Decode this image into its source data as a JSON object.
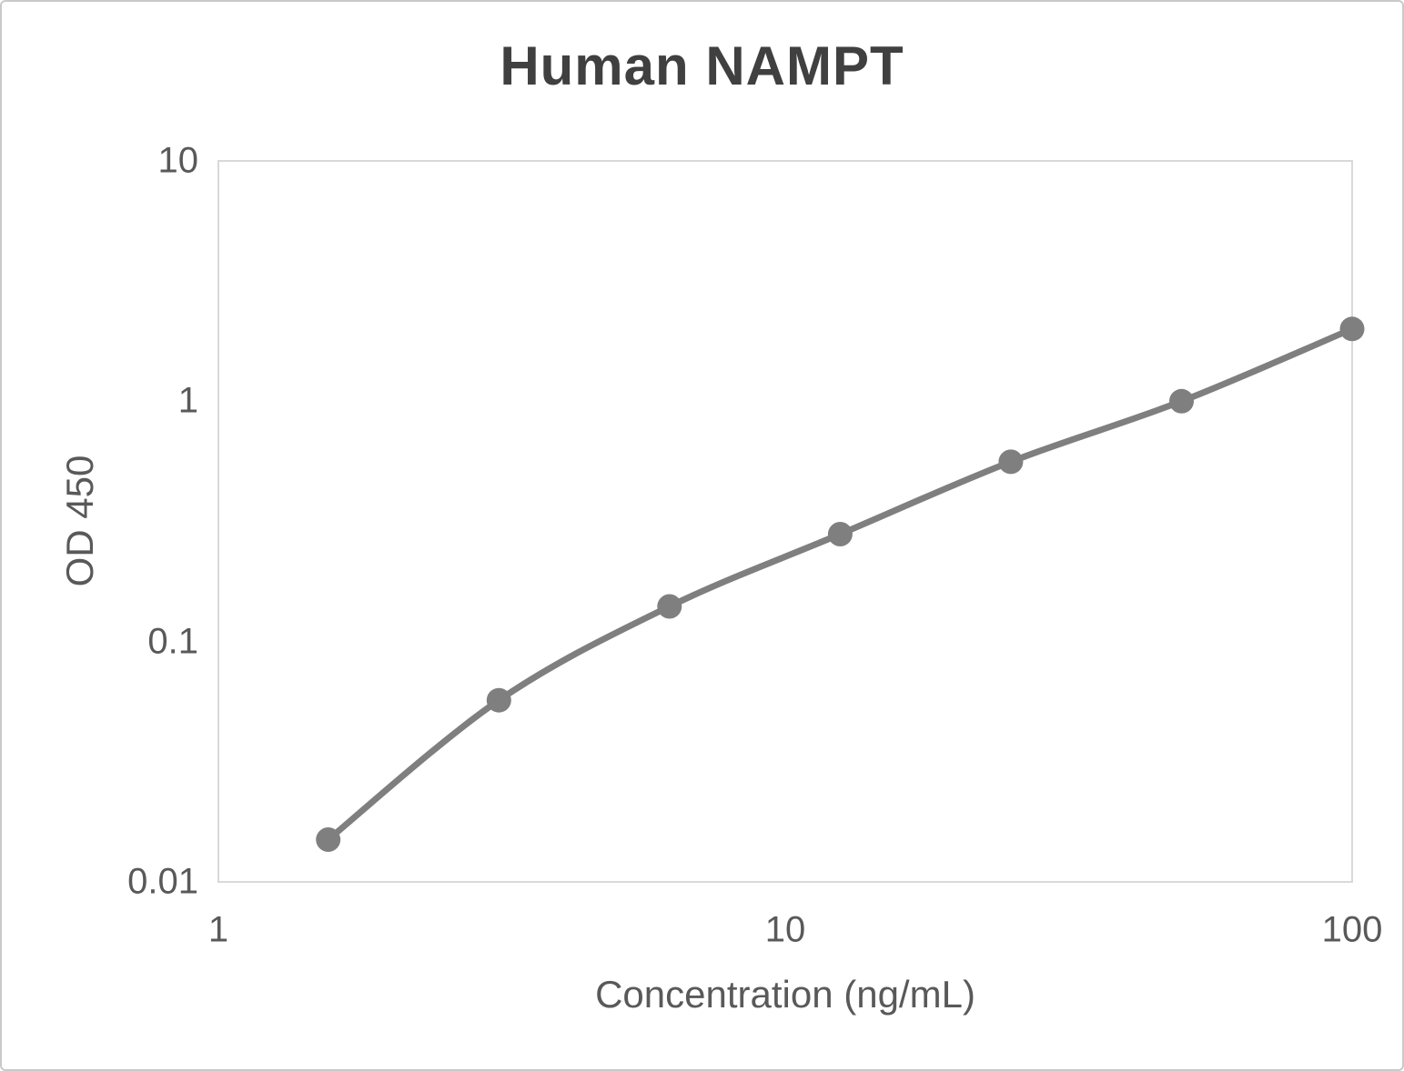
{
  "chart_data": {
    "type": "scatter",
    "title": "Human NAMPT",
    "xlabel": "Concentration (ng/mL)",
    "ylabel": "OD 450",
    "x_scale": "log",
    "y_scale": "log",
    "xlim": [
      1,
      100
    ],
    "ylim": [
      0.01,
      10
    ],
    "grid": false,
    "legend": false,
    "series": [
      {
        "x": [
          1.5625,
          3.125,
          6.25,
          12.5,
          25,
          50,
          100
        ],
        "y": [
          0.015,
          0.057,
          0.14,
          0.28,
          0.56,
          1.0,
          2.0
        ],
        "color": "#7f7f7f",
        "marker": "circle",
        "line": "smooth"
      }
    ],
    "x_ticks": [
      {
        "label": "1",
        "value": 1
      },
      {
        "label": "10",
        "value": 10
      },
      {
        "label": "100",
        "value": 100
      }
    ],
    "y_ticks": [
      {
        "label": "10",
        "value": 10
      },
      {
        "label": "1",
        "value": 1
      },
      {
        "label": "0.1",
        "value": 0.1
      },
      {
        "label": "0.01",
        "value": 0.01
      }
    ],
    "colors": {
      "title_text": "#404040",
      "axis_text": "#595959",
      "plot_border": "#d9d9d9",
      "outer_border": "#c9c9c9",
      "plot_background": "#ffffff"
    }
  }
}
